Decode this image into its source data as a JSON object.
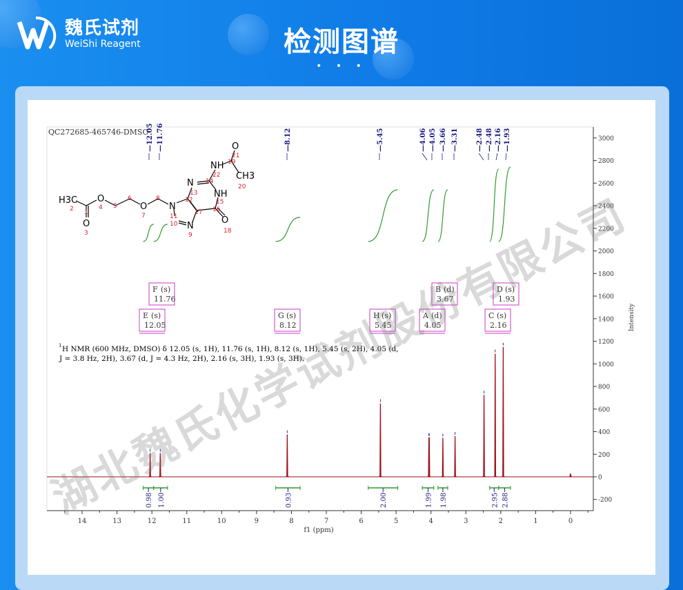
{
  "header": {
    "logo_cn": "魏氏试剂",
    "logo_en": "WeiShi Reagent",
    "title": "检测图谱",
    "dots": "• • •"
  },
  "watermark": "湖北魏氏化学试剂股份有限公司",
  "colors": {
    "spectrum": "#a0101a",
    "integral": "#2e9a2e",
    "peak_label": "#1a1a80",
    "multiplet_box": "#c838c8",
    "header_bg": "#1285ec"
  },
  "chart_data": {
    "type": "line",
    "sample_id": "QC272685-465746-DMSO",
    "xlabel": "f1 (ppm)",
    "ylabel": "Intensity",
    "xlim": [
      14.6,
      -0.6
    ],
    "x_reversed": true,
    "ylim": [
      -300,
      3100
    ],
    "x_ticks": [
      14,
      13,
      12,
      11,
      10,
      9,
      8,
      7,
      6,
      5,
      4,
      3,
      2,
      1,
      0
    ],
    "y_ticks": [
      -200,
      0,
      200,
      400,
      600,
      800,
      1000,
      1200,
      1400,
      1600,
      1800,
      2000,
      2200,
      2400,
      2600,
      2800,
      3000
    ],
    "peak_labels": [
      "12.05",
      "11.76",
      "8.12",
      "5.45",
      "4.06",
      "4.05",
      "3.66",
      "3.31",
      "2.48",
      "2.48",
      "2.16",
      "1.93"
    ],
    "peaks": [
      {
        "ppm": 12.05,
        "intensity": 210
      },
      {
        "ppm": 11.76,
        "intensity": 210
      },
      {
        "ppm": 8.12,
        "intensity": 375
      },
      {
        "ppm": 5.45,
        "intensity": 650
      },
      {
        "ppm": 4.06,
        "intensity": 350
      },
      {
        "ppm": 4.05,
        "intensity": 350
      },
      {
        "ppm": 3.66,
        "intensity": 345
      },
      {
        "ppm": 3.31,
        "intensity": 360
      },
      {
        "ppm": 2.48,
        "intensity": 725
      },
      {
        "ppm": 2.16,
        "intensity": 1090
      },
      {
        "ppm": 1.93,
        "intensity": 1150
      },
      {
        "ppm": 0.0,
        "intensity": 30
      }
    ],
    "integrals": [
      {
        "from": 12.25,
        "to": 11.95,
        "value": "0.98"
      },
      {
        "from": 11.95,
        "to": 11.55,
        "value": "1.00"
      },
      {
        "from": 8.45,
        "to": 7.75,
        "value": "0.93"
      },
      {
        "from": 5.8,
        "to": 4.95,
        "value": "2.00"
      },
      {
        "from": 4.25,
        "to": 3.92,
        "value": "1.99"
      },
      {
        "from": 3.8,
        "to": 3.52,
        "value": "1.98"
      },
      {
        "from": 2.32,
        "to": 2.06,
        "value": "2.95"
      },
      {
        "from": 2.06,
        "to": 1.72,
        "value": "2.88"
      }
    ],
    "multiplets": [
      {
        "letter": "F",
        "mult": "(s)",
        "shift": "11.76"
      },
      {
        "letter": "E",
        "mult": "(s)",
        "shift": "12.05"
      },
      {
        "letter": "G",
        "mult": "(s)",
        "shift": "8.12"
      },
      {
        "letter": "H",
        "mult": "(s)",
        "shift": "5.45"
      },
      {
        "letter": "A",
        "mult": "(d)",
        "shift": "4.05"
      },
      {
        "letter": "B",
        "mult": "(d)",
        "shift": "3.67"
      },
      {
        "letter": "C",
        "mult": "(s)",
        "shift": "2.16"
      },
      {
        "letter": "D",
        "mult": "(s)",
        "shift": "1.93"
      }
    ],
    "nmr_text_line1": "H NMR (600 MHz, DMSO) δ 12.05 (s, 1H), 11.76 (s, 1H), 8.12 (s, 1H), 5.45 (s, 2H), 4.05 (d,",
    "nmr_text_sup": "1",
    "nmr_text_line2": "J = 3.8 Hz, 2H), 3.67 (d, J = 4.3 Hz, 2H), 2.16 (s, 3H), 1.93 (s, 3H).",
    "structure": {
      "atoms": [
        "H3C",
        "O",
        "O",
        "O",
        "N",
        "N",
        "N",
        "NH",
        "O",
        "NH",
        "O",
        "CH3"
      ],
      "numbers": [
        "1",
        "2",
        "3",
        "4",
        "5",
        "6",
        "7",
        "8",
        "9",
        "10",
        "11",
        "12",
        "13",
        "14",
        "15",
        "16",
        "17",
        "18",
        "19",
        "20",
        "21",
        "22"
      ]
    }
  }
}
